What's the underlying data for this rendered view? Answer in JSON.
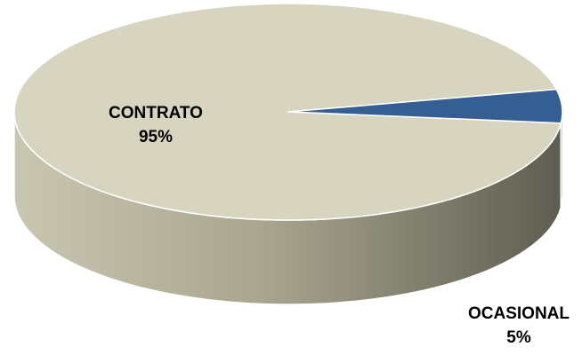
{
  "chart_data": {
    "type": "pie",
    "style": "3d",
    "title": "",
    "slices": [
      {
        "name": "CONTRATO",
        "value": 95,
        "label": "95%",
        "color": "#d7d5c0",
        "side_color": "#9e9b86"
      },
      {
        "name": "OCASIONAL",
        "value": 5,
        "label": "5%",
        "color": "#355e92",
        "side_color": "#1b2a42"
      }
    ],
    "legend": "none"
  }
}
